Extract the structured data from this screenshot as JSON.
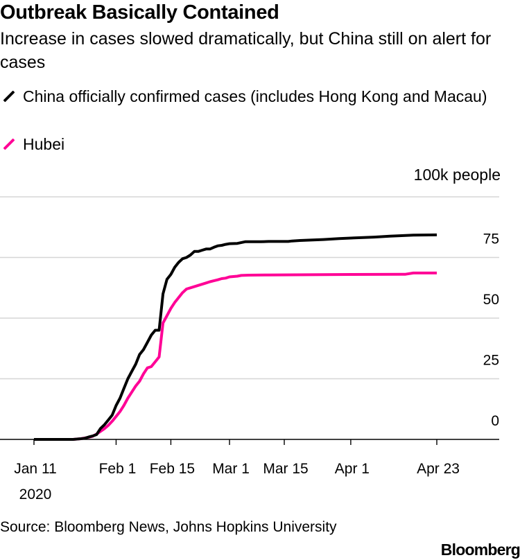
{
  "chart_data": {
    "type": "line",
    "title": "Outbreak Basically Contained",
    "subtitle": "Increase in cases slowed dramatically, but China still on alert for cases",
    "unit_label": "100k people",
    "ylim": [
      0,
      100
    ],
    "yticks": [
      0,
      25,
      50,
      75
    ],
    "xlim": [
      0,
      103
    ],
    "x_ticks": [
      {
        "day": 0,
        "label": "Jan 11"
      },
      {
        "day": 21,
        "label": "Feb 1"
      },
      {
        "day": 35,
        "label": "Feb 15"
      },
      {
        "day": 50,
        "label": "Mar 1"
      },
      {
        "day": 64,
        "label": "Mar 15"
      },
      {
        "day": 81,
        "label": "Apr 1"
      },
      {
        "day": 103,
        "label": "Apr 23"
      }
    ],
    "year_label": "2020",
    "series": [
      {
        "name": "China officially confirmed cases (includes Hong Kong and Macau)",
        "color": "#000000",
        "points": [
          [
            0,
            0
          ],
          [
            10,
            0
          ],
          [
            12,
            0.3
          ],
          [
            13,
            0.5
          ],
          [
            14,
            1
          ],
          [
            15,
            1.4
          ],
          [
            16,
            2
          ],
          [
            17,
            4.5
          ],
          [
            18,
            6
          ],
          [
            19,
            8
          ],
          [
            20,
            10
          ],
          [
            21,
            14
          ],
          [
            22,
            17
          ],
          [
            23,
            21
          ],
          [
            24,
            25
          ],
          [
            25,
            28
          ],
          [
            26,
            31
          ],
          [
            27,
            35
          ],
          [
            28,
            37
          ],
          [
            29,
            40
          ],
          [
            30,
            43
          ],
          [
            31,
            45
          ],
          [
            32,
            45
          ],
          [
            33,
            60
          ],
          [
            34,
            66
          ],
          [
            35,
            68
          ],
          [
            36,
            71
          ],
          [
            37,
            73
          ],
          [
            38,
            74.5
          ],
          [
            39,
            75
          ],
          [
            40,
            76
          ],
          [
            41,
            77.5
          ],
          [
            42,
            77.5
          ],
          [
            43,
            78
          ],
          [
            44,
            78.5
          ],
          [
            45,
            78.5
          ],
          [
            46,
            79.2
          ],
          [
            47,
            79.8
          ],
          [
            48,
            80
          ],
          [
            49,
            80.4
          ],
          [
            50,
            80.7
          ],
          [
            52,
            80.8
          ],
          [
            54,
            81.5
          ],
          [
            58,
            81.5
          ],
          [
            60,
            81.6
          ],
          [
            64,
            81.6
          ],
          [
            65,
            81.6
          ],
          [
            66,
            81.8
          ],
          [
            68,
            82
          ],
          [
            74,
            82.4
          ],
          [
            78,
            82.8
          ],
          [
            81,
            83
          ],
          [
            87,
            83.4
          ],
          [
            91,
            83.8
          ],
          [
            97,
            84.2
          ],
          [
            103,
            84.3
          ]
        ]
      },
      {
        "name": "Hubei",
        "color": "#ff0096",
        "points": [
          [
            0,
            0
          ],
          [
            10,
            0
          ],
          [
            12,
            0.3
          ],
          [
            13,
            0.6
          ],
          [
            14,
            0.9
          ],
          [
            15,
            1.3
          ],
          [
            16,
            2.2
          ],
          [
            17,
            3.3
          ],
          [
            18,
            4.4
          ],
          [
            19,
            5.8
          ],
          [
            20,
            7.5
          ],
          [
            21,
            9.5
          ],
          [
            22,
            11.5
          ],
          [
            23,
            14
          ],
          [
            24,
            17
          ],
          [
            25,
            19.5
          ],
          [
            26,
            22
          ],
          [
            27,
            24
          ],
          [
            28,
            27
          ],
          [
            29,
            29.5
          ],
          [
            30,
            30
          ],
          [
            31,
            32
          ],
          [
            32,
            34
          ],
          [
            33,
            48
          ],
          [
            34,
            51
          ],
          [
            35,
            54
          ],
          [
            36,
            56.5
          ],
          [
            37,
            58.5
          ],
          [
            38,
            60.5
          ],
          [
            39,
            62
          ],
          [
            40,
            62.5
          ],
          [
            42,
            63.5
          ],
          [
            44,
            64.5
          ],
          [
            45,
            65
          ],
          [
            46,
            65.4
          ],
          [
            47,
            65.8
          ],
          [
            48,
            66.3
          ],
          [
            49,
            66.5
          ],
          [
            50,
            67
          ],
          [
            52,
            67.3
          ],
          [
            53,
            67.6
          ],
          [
            55,
            67.7
          ],
          [
            60,
            67.8
          ],
          [
            81,
            68
          ],
          [
            94,
            68.1
          ],
          [
            95,
            68.1
          ],
          [
            97,
            68.6
          ],
          [
            103,
            68.6
          ]
        ]
      }
    ]
  },
  "source": "Source: Bloomberg News, Johns Hopkins University",
  "brand": "Bloomberg"
}
